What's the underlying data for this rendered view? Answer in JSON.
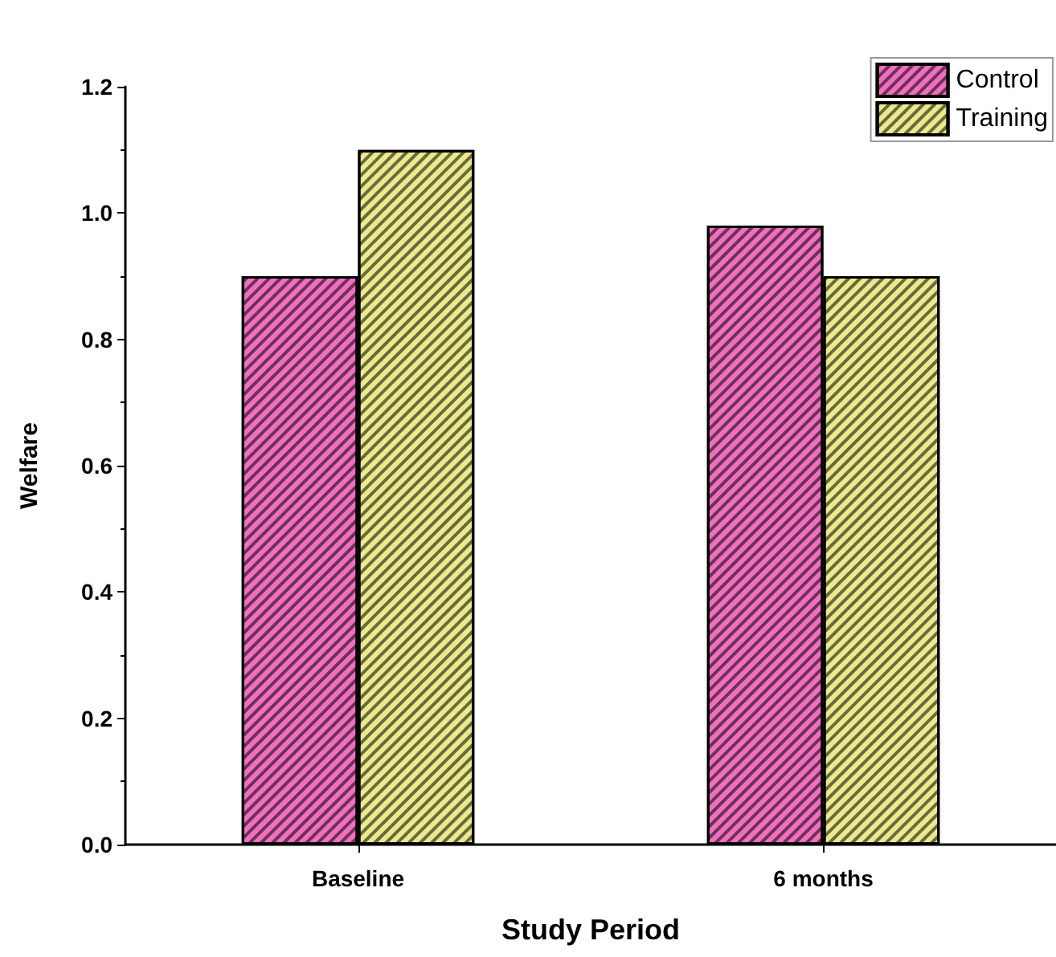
{
  "chart_data": {
    "type": "bar",
    "xlabel": "Study Period",
    "ylabel": "Welfare",
    "categories": [
      "Baseline",
      "6 months"
    ],
    "series": [
      {
        "name": "Control",
        "color": "#f26fc0",
        "values": [
          0.9,
          0.98
        ]
      },
      {
        "name": "Training",
        "color": "#ecea8c",
        "values": [
          1.1,
          0.9
        ]
      }
    ],
    "ylim": [
      0,
      1.2
    ],
    "yticks": [
      {
        "value": 0,
        "label": "0.0"
      },
      {
        "value": 0.2,
        "label": "0.2"
      },
      {
        "value": 0.4,
        "label": "0.4"
      },
      {
        "value": 0.6,
        "label": "0.6"
      },
      {
        "value": 0.8,
        "label": "0.8"
      },
      {
        "value": 1,
        "label": "1.0"
      },
      {
        "value": 1.2,
        "label": "1.2"
      }
    ],
    "grid": false,
    "legend": "top right"
  }
}
